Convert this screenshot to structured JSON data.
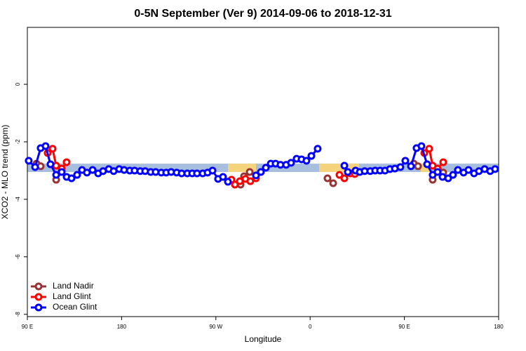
{
  "chart_data": {
    "type": "line",
    "title": "0-5N September (Ver 9)   2014-09-06 to 2018-12-31",
    "xlabel": "Longitude",
    "ylabel": "XCO2 - MLO trend (ppm)",
    "xlim": [
      90,
      540
    ],
    "ylim": [
      -8.08,
      1.98
    ],
    "xticks": [
      {
        "value": 90,
        "label": "90 E"
      },
      180,
      {
        "value": 270,
        "label": "90 W"
      },
      {
        "value": 360,
        "label": "0"
      },
      {
        "value": 450,
        "label": "90 E"
      },
      {
        "value": 540,
        "label": "180"
      }
    ],
    "yticks": [
      0,
      -2,
      -4,
      -6,
      -8
    ],
    "legend": "bottom-left",
    "band": {
      "ylim": [
        -3.05,
        -2.76
      ],
      "color": "#a7bedf",
      "segments": [
        {
          "start": 281.5,
          "end": 308.3,
          "color": "#f6d47e"
        },
        {
          "start": 368.6,
          "end": 406.7,
          "color": "#f6d47e"
        },
        {
          "start": 465.7,
          "end": 476.4,
          "color": "#f6d47e"
        }
      ]
    },
    "series": [
      {
        "name": "Land Nadir",
        "color": "#993333",
        "x": [
          98.7,
          102.7,
          null,
          117.5,
          122.8,
          null,
          293.6,
          296.9,
          302.3,
          null,
          376.6,
          382.0,
          null,
          459.0,
          463.0,
          null,
          477.0,
          482.4,
          487.1
        ],
        "values": [
          -2.76,
          -2.85,
          null,
          -3.32,
          -3.0,
          null,
          -3.49,
          -3.2,
          -3.05,
          null,
          -3.27,
          -3.44,
          null,
          -2.76,
          -2.85,
          null,
          -3.32,
          -3.0,
          -3.07
        ]
      },
      {
        "name": "Land Glint",
        "color": "#ff0000",
        "x": [
          109.4,
          114.1,
          117.5,
          122.8,
          127.5,
          null,
          284.9,
          288.2,
          292.9,
          298.2,
          302.9,
          308.3,
          null,
          388.0,
          392.7,
          398.7,
          402.7,
          null,
          469.0,
          473.7,
          477.0,
          481.7,
          487.1
        ],
        "values": [
          -2.39,
          -2.24,
          -2.83,
          -2.93,
          -2.71,
          null,
          -3.32,
          -3.49,
          -3.37,
          -3.29,
          -3.37,
          -3.27,
          null,
          -3.15,
          -3.27,
          -3.1,
          -3.12,
          null,
          -2.39,
          -2.24,
          -2.83,
          -2.93,
          -2.71
        ]
      },
      {
        "name": "Ocean Glint",
        "color": "#0000ff",
        "x": [
          91.3,
          97.4,
          102.7,
          107.4,
          112.1,
          117.5,
          122.8,
          127.5,
          132.2,
          137.5,
          142.2,
          146.9,
          152.3,
          157.6,
          162.3,
          167.7,
          172.4,
          177.7,
          182.4,
          187.8,
          192.4,
          197.8,
          202.5,
          207.8,
          212.5,
          217.9,
          222.6,
          227.3,
          232.6,
          237.3,
          242.7,
          247.4,
          252.0,
          257.4,
          262.1,
          266.8,
          272.1,
          276.8,
          281.5,
          null,
          308.3,
          313.0,
          317.7,
          322.4,
          327.0,
          331.7,
          337.1,
          341.8,
          347.1,
          351.8,
          356.5,
          361.2,
          367.2,
          null,
          392.7,
          396.0,
          403.4,
          407.4,
          412.1,
          417.4,
          422.1,
          426.8,
          431.5,
          436.2,
          440.9,
          446.2,
          450.9,
          456.3,
          461.6,
          466.3,
          471.7,
          477.0,
          481.7,
          486.4,
          491.8,
          496.4,
          501.1,
          506.5,
          511.2,
          516.5,
          521.2,
          526.6,
          531.9,
          536.6
        ],
        "values": [
          -2.66,
          -2.88,
          -2.22,
          -2.15,
          -2.78,
          -3.15,
          -3.05,
          -3.22,
          -3.27,
          -3.15,
          -2.98,
          -3.07,
          -2.98,
          -3.1,
          -3.02,
          -2.95,
          -3.02,
          -2.95,
          -2.98,
          -3.0,
          -3.0,
          -3.02,
          -3.02,
          -3.05,
          -3.05,
          -3.07,
          -3.07,
          -3.05,
          -3.07,
          -3.1,
          -3.1,
          -3.1,
          -3.1,
          -3.1,
          -3.07,
          -3.0,
          -3.29,
          -3.22,
          -3.39,
          null,
          -3.17,
          -3.05,
          -2.9,
          -2.76,
          -2.76,
          -2.8,
          -2.8,
          -2.73,
          -2.59,
          -2.61,
          -2.66,
          -2.49,
          -2.24,
          null,
          -2.83,
          -3.05,
          -3.0,
          -3.05,
          -3.02,
          -3.02,
          -3.0,
          -3.0,
          -3.0,
          -2.95,
          -2.93,
          -2.88,
          -2.66,
          -2.85,
          -2.22,
          -2.15,
          -2.78,
          -3.15,
          -3.05,
          -3.22,
          -3.27,
          -3.15,
          -2.98,
          -3.07,
          -2.98,
          -3.1,
          -3.02,
          -2.95,
          -3.02,
          -2.95
        ]
      }
    ]
  }
}
